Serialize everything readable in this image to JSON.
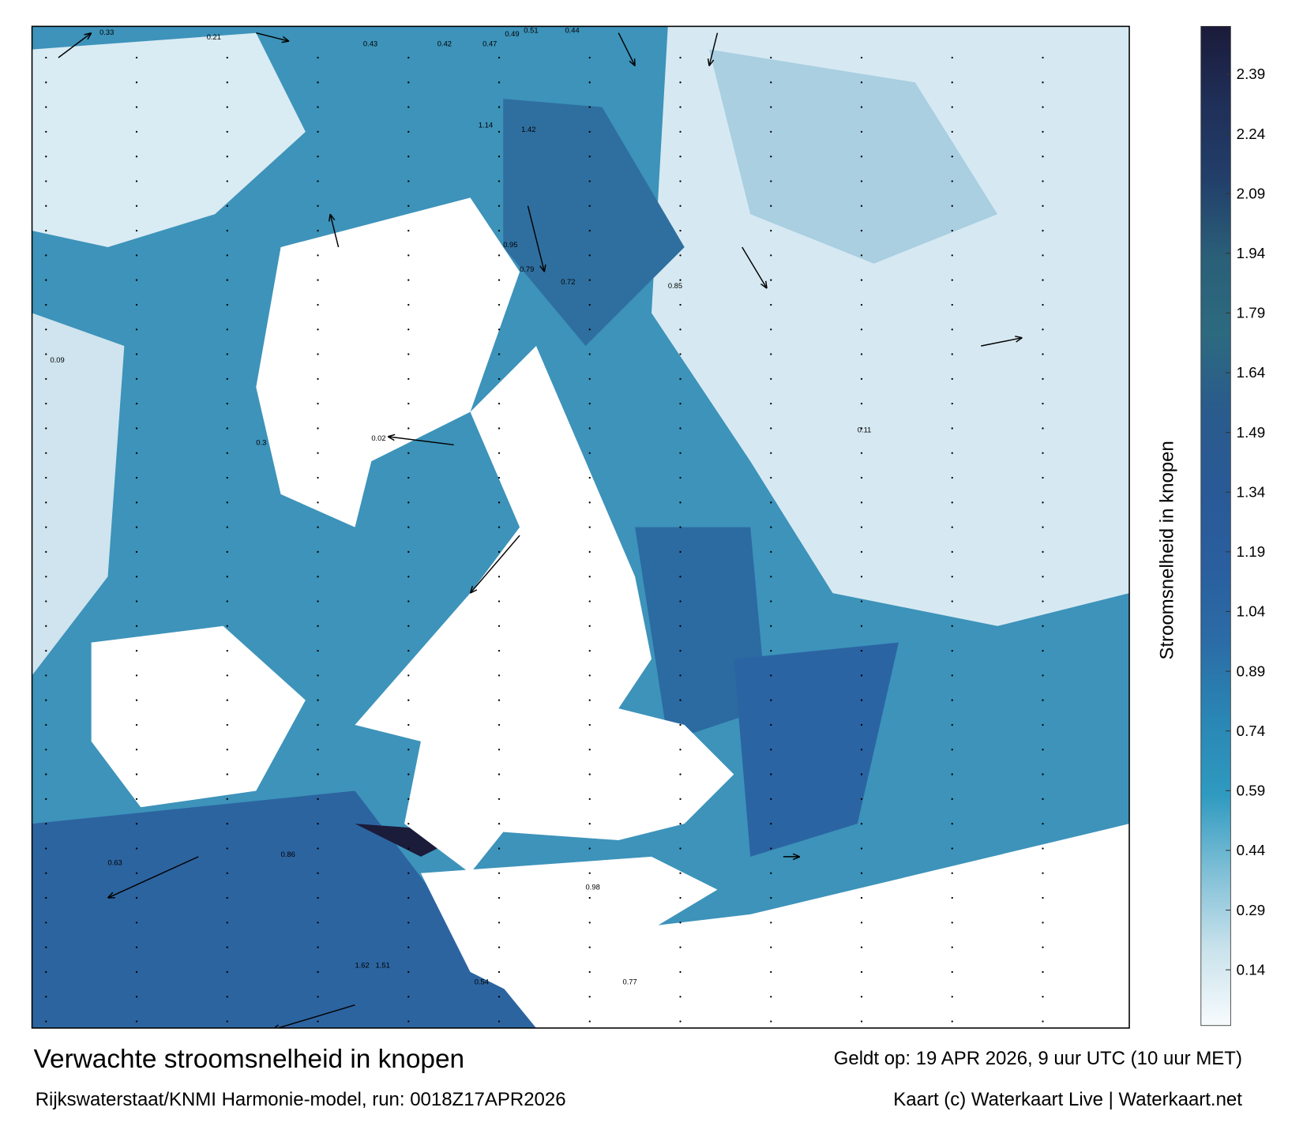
{
  "title": "Verwachte stroomsnelheid in knopen",
  "model_run": "Rijkswaterstaat/KNMI Harmonie-model, run: 0018Z17APR2026",
  "valid_time": "Geldt op: 19 APR 2026, 9 uur UTC (10 uur MET)",
  "credit": "Kaart (c) Waterkaart Live | Waterkaart.net",
  "colorbar": {
    "label": "Stroomsnelheid in knopen",
    "lim": [
      0,
      2.51
    ],
    "ticks": [
      0.14,
      0.29,
      0.44,
      0.59,
      0.74,
      0.89,
      1.04,
      1.19,
      1.34,
      1.49,
      1.64,
      1.79,
      1.94,
      2.09,
      2.24,
      2.39
    ],
    "colors": [
      "#f7fbfd",
      "#c9e2ec",
      "#7fbfd6",
      "#2f9ac0",
      "#2a86b4",
      "#2b6ca6",
      "#2a5e9e",
      "#295a96",
      "#2a5b8c",
      "#2c6a80",
      "#2a5f78",
      "#223f6a",
      "#1f2f58",
      "#1b1b3a"
    ]
  },
  "map_labels": [
    0.33,
    0.21,
    0.43,
    0.42,
    0.47,
    0.49,
    0.51,
    0.44,
    1.42,
    1.14,
    0.95,
    0.79,
    0.72,
    0.85,
    1.62,
    1.51,
    0.98,
    0.77,
    0.02,
    0.3,
    0.09,
    0.11,
    0.54,
    0.63,
    0.86
  ]
}
